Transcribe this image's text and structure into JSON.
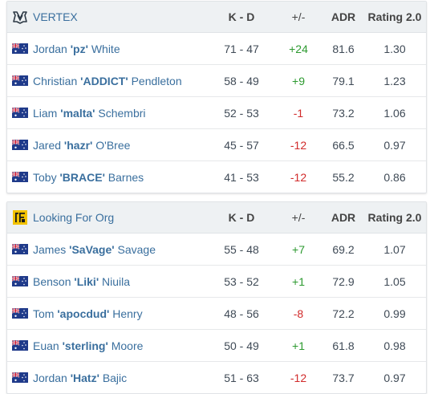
{
  "tables": [
    {
      "team": "VERTEX",
      "logo": "vertex-logo",
      "headers": {
        "kd": "K - D",
        "pm": "+/-",
        "adr": "ADR",
        "rating": "Rating 2.0"
      },
      "players": [
        {
          "first": "Jordan",
          "nick": "'pz'",
          "last": "White",
          "kd": "71 - 47",
          "pm": "+24",
          "adr": "81.6",
          "rating": "1.30"
        },
        {
          "first": "Christian",
          "nick": "'ADDICT'",
          "last": "Pendleton",
          "kd": "58 - 49",
          "pm": "+9",
          "adr": "79.1",
          "rating": "1.23"
        },
        {
          "first": "Liam",
          "nick": "'malta'",
          "last": "Schembri",
          "kd": "52 - 53",
          "pm": "-1",
          "adr": "73.2",
          "rating": "1.06"
        },
        {
          "first": "Jared",
          "nick": "'hazr'",
          "last": "O'Bree",
          "kd": "45 - 57",
          "pm": "-12",
          "adr": "66.5",
          "rating": "0.97"
        },
        {
          "first": "Toby",
          "nick": "'BRACE'",
          "last": "Barnes",
          "kd": "41 - 53",
          "pm": "-12",
          "adr": "55.2",
          "rating": "0.86"
        }
      ]
    },
    {
      "team": "Looking For Org",
      "logo": "lfo-logo",
      "headers": {
        "kd": "K - D",
        "pm": "+/-",
        "adr": "ADR",
        "rating": "Rating 2.0"
      },
      "players": [
        {
          "first": "James",
          "nick": "'SaVage'",
          "last": "Savage",
          "kd": "55 - 48",
          "pm": "+7",
          "adr": "69.2",
          "rating": "1.07"
        },
        {
          "first": "Benson",
          "nick": "'Liki'",
          "last": "Niuila",
          "kd": "53 - 52",
          "pm": "+1",
          "adr": "72.9",
          "rating": "1.05"
        },
        {
          "first": "Tom",
          "nick": "'apocdud'",
          "last": "Henry",
          "kd": "48 - 56",
          "pm": "-8",
          "adr": "72.2",
          "rating": "0.99"
        },
        {
          "first": "Euan",
          "nick": "'sterling'",
          "last": "Moore",
          "kd": "50 - 49",
          "pm": "+1",
          "adr": "61.8",
          "rating": "0.98"
        },
        {
          "first": "Jordan",
          "nick": "'Hatz'",
          "last": "Bajic",
          "kd": "51 - 63",
          "pm": "-12",
          "adr": "73.7",
          "rating": "0.97"
        }
      ]
    }
  ],
  "colors": {
    "positive": "#2d9a30",
    "negative": "#d12a2a",
    "link": "#3a6f9e"
  },
  "flag_icon": "australia-flag-icon"
}
